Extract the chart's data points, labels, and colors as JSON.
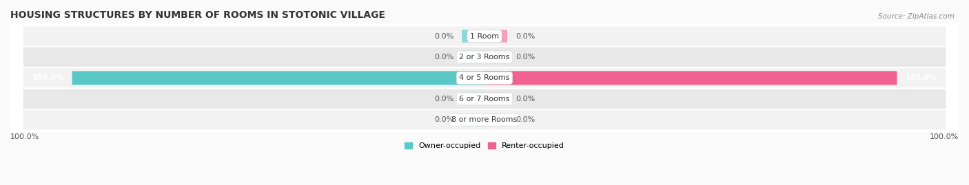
{
  "title": "HOUSING STRUCTURES BY NUMBER OF ROOMS IN STOTONIC VILLAGE",
  "source": "Source: ZipAtlas.com",
  "categories": [
    "1 Room",
    "2 or 3 Rooms",
    "4 or 5 Rooms",
    "6 or 7 Rooms",
    "8 or more Rooms"
  ],
  "owner_values": [
    0.0,
    0.0,
    100.0,
    0.0,
    0.0
  ],
  "renter_values": [
    0.0,
    0.0,
    100.0,
    0.0,
    0.0
  ],
  "owner_color": "#5BC8C8",
  "renter_color": "#F06090",
  "row_bg_light": "#F2F2F2",
  "row_bg_dark": "#E8E8E8",
  "stub_owner_color": "#8ED8D8",
  "stub_renter_color": "#F4A0BC",
  "legend_owner": "Owner-occupied",
  "legend_renter": "Renter-occupied",
  "axis_label": "100.0%",
  "title_fontsize": 10,
  "source_fontsize": 7.5,
  "label_fontsize": 8,
  "category_fontsize": 8
}
